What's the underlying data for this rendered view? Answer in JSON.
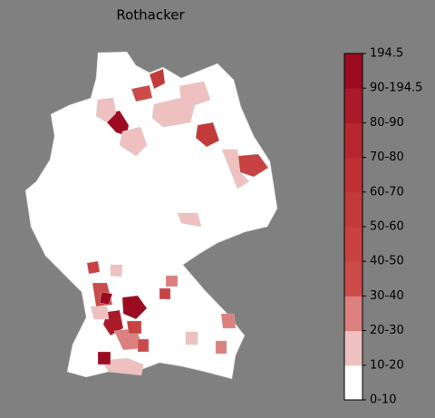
{
  "title": "Rothacker",
  "colorbar": {
    "labels": [
      "0-10",
      "10-20",
      "20-30",
      "30-40",
      "40-50",
      "50-60",
      "60-70",
      "70-80",
      "80-90",
      "90-194.5",
      "194.5"
    ],
    "colors": [
      "#ffffff",
      "#efc0c0",
      "#db7f7f",
      "#cc4a4a",
      "#c84242",
      "#c33a3a",
      "#bd3134",
      "#b5272e",
      "#aa1a28",
      "#9c0b20"
    ]
  }
}
